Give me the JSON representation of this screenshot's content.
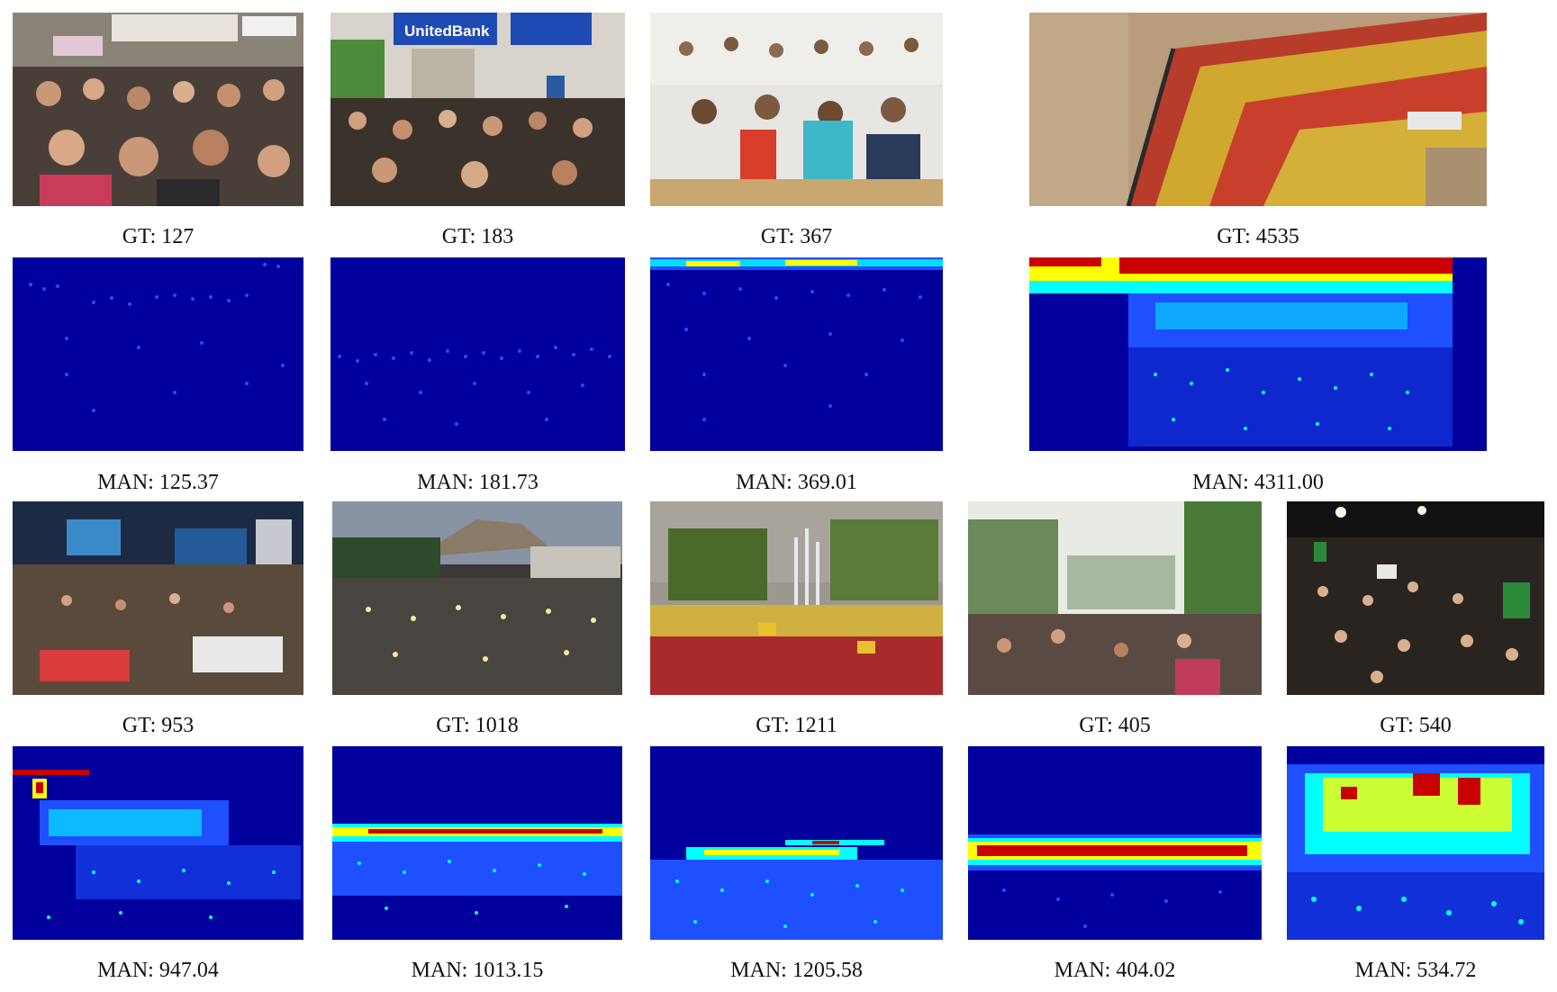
{
  "figure": {
    "row1": [
      {
        "gt": "GT: 127",
        "man": "MAN: 125.37"
      },
      {
        "gt": "GT: 183",
        "man": "MAN: 181.73"
      },
      {
        "gt": "GT: 367",
        "man": "MAN: 369.01"
      },
      {
        "gt": "GT: 4535",
        "man": "MAN: 4311.00"
      }
    ],
    "row2": [
      {
        "gt": "GT: 953",
        "man": "MAN: 947.04"
      },
      {
        "gt": "GT: 1018",
        "man": "MAN: 1013.15"
      },
      {
        "gt": "GT: 1211",
        "man": "MAN: 1205.58"
      },
      {
        "gt": "GT: 405",
        "man": "MAN: 404.02"
      },
      {
        "gt": "GT: 540",
        "man": "MAN: 534.72"
      }
    ],
    "photo_signs": {
      "bank_sign": "UnitedBank"
    }
  },
  "colors": {
    "heatmap_background": "#00009c",
    "heatmap_low": "#1e50ff",
    "heatmap_mid": "#00ffff",
    "heatmap_high_yellow": "#ffff00",
    "heatmap_peak": "#c80000"
  }
}
